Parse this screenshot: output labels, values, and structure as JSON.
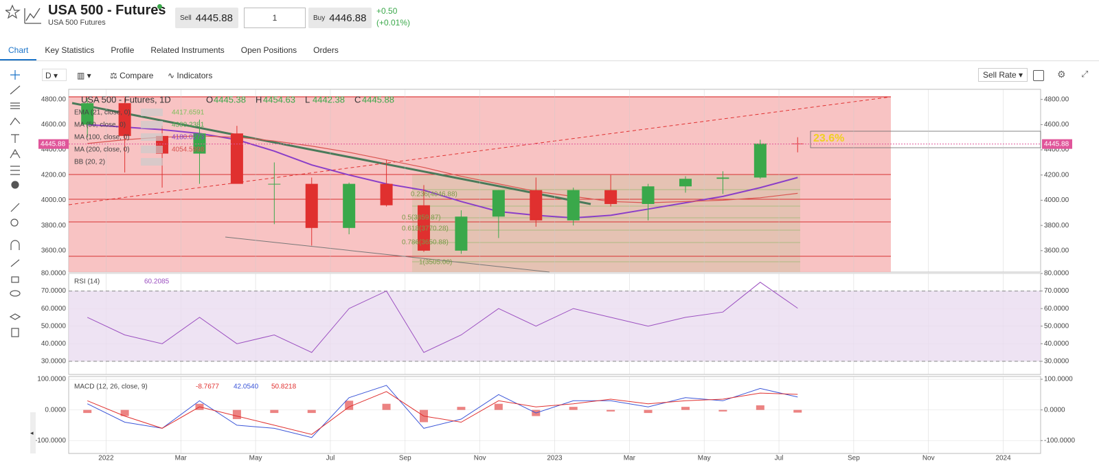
{
  "header": {
    "title": "USA 500 - Futures",
    "subtitle": "USA 500 Futures",
    "sell_label": "Sell",
    "sell_value": "4445.88",
    "quantity": "1",
    "buy_label": "Buy",
    "buy_value": "4446.88",
    "change": "+0.50",
    "change_pct": "(+0.01%)"
  },
  "tabs": [
    "Chart",
    "Key Statistics",
    "Profile",
    "Related Instruments",
    "Open Positions",
    "Orders"
  ],
  "toolbar": {
    "interval": "D",
    "compare": "Compare",
    "indicators": "Indicators",
    "rate": "Sell Rate"
  },
  "chart_data": [
    {
      "type": "candlestick",
      "title": "USA 500 - Futures, 1D",
      "ohlc_labels": [
        {
          "key": "O",
          "value": "4445.38"
        },
        {
          "key": "H",
          "value": "4454.63"
        },
        {
          "key": "L",
          "value": "4442.38"
        },
        {
          "key": "C",
          "value": "4445.88"
        }
      ],
      "indicators": [
        {
          "name": "EMA (21, close, 0)",
          "value": "4417.6591",
          "color": "#7cbf5a"
        },
        {
          "name": "MA (50, close, 0)",
          "value": "4300.2381",
          "color": "#4fae4f"
        },
        {
          "name": "MA (100, close, 0)",
          "value": "4180.0273",
          "color": "#8a3ec8"
        },
        {
          "name": "MA (200, close, 0)",
          "value": "4054.5998",
          "color": "#d9534f"
        },
        {
          "name": "BB (20, 2)",
          "value": null,
          "color": "#4aa0d0"
        }
      ],
      "fib_labels": [
        "0.236(4046.88)",
        "0.5(3859.87)",
        "0.618(3770.28)",
        "0.786(3650.88)",
        "1(3505.00)"
      ],
      "zone_label": "23.6%",
      "last_price": "4445.88",
      "x": [
        "2021-12",
        "2022-01",
        "2022-02",
        "2022-03",
        "2022-04",
        "2022-05",
        "2022-06",
        "2022-07",
        "2022-08",
        "2022-09",
        "2022-10",
        "2022-11",
        "2022-12",
        "2023-01",
        "2023-02",
        "2023-03",
        "2023-04",
        "2023-05",
        "2023-06",
        "2023-07"
      ],
      "open": [
        4600,
        4770,
        4510,
        4370,
        4530,
        4130,
        4130,
        3780,
        4130,
        3960,
        3600,
        3870,
        4080,
        3840,
        4080,
        3970,
        4110,
        4170,
        4180,
        4450
      ],
      "high": [
        4810,
        4810,
        4590,
        4640,
        4590,
        4300,
        4180,
        4140,
        4320,
        4120,
        3920,
        4080,
        4180,
        4100,
        4200,
        4130,
        4190,
        4230,
        4480,
        4500
      ],
      "low": [
        4500,
        4220,
        4100,
        4130,
        4140,
        3810,
        3640,
        3730,
        3950,
        3590,
        3575,
        3700,
        3790,
        3800,
        3950,
        3840,
        4060,
        4050,
        4170,
        4380
      ],
      "close": [
        4770,
        4510,
        4370,
        4530,
        4130,
        4130,
        3780,
        4130,
        3960,
        3600,
        3870,
        4080,
        3840,
        4080,
        3970,
        4110,
        4170,
        4180,
        4450,
        4445.88
      ],
      "up_color": "#3aa84a",
      "down_color": "#e0302f",
      "series": [
        {
          "name": "MA (100, close, 0)",
          "color": "#8a3ec8",
          "values": [
            4600,
            4580,
            4560,
            4530,
            4480,
            4390,
            4280,
            4200,
            4130,
            4080,
            3990,
            3910,
            3880,
            3860,
            3880,
            3930,
            3980,
            4030,
            4100,
            4180
          ]
        },
        {
          "name": "MA (200, close, 0)",
          "color": "#d9534f",
          "values": [
            4450,
            4480,
            4500,
            4510,
            4500,
            4470,
            4430,
            4380,
            4320,
            4260,
            4190,
            4130,
            4070,
            4030,
            3990,
            3980,
            3990,
            4000,
            4020,
            4054.6
          ]
        }
      ],
      "xlim": [
        "2021-12",
        "2024-02"
      ],
      "xticks": [
        {
          "value": "2022-01",
          "label": "2022"
        },
        {
          "value": "2022-03",
          "label": "Mar"
        },
        {
          "value": "2022-05",
          "label": "May"
        },
        {
          "value": "2022-07",
          "label": "Jul"
        },
        {
          "value": "2022-09",
          "label": "Sep"
        },
        {
          "value": "2022-11",
          "label": "Nov"
        },
        {
          "value": "2023-01",
          "label": "2023"
        },
        {
          "value": "2023-03",
          "label": "Mar"
        },
        {
          "value": "2023-05",
          "label": "May"
        },
        {
          "value": "2023-07",
          "label": "Jul"
        },
        {
          "value": "2023-09",
          "label": "Sep"
        },
        {
          "value": "2023-11",
          "label": "Nov"
        },
        {
          "value": "2024-01",
          "label": "2024"
        }
      ],
      "ylim": [
        3430,
        4880
      ],
      "yticks": [
        {
          "value": 3600,
          "label": "3600.00"
        },
        {
          "value": 3800,
          "label": "3800.00"
        },
        {
          "value": 4000,
          "label": "4000.00"
        },
        {
          "value": 4200,
          "label": "4200.00"
        },
        {
          "value": 4400,
          "label": "4400.00"
        },
        {
          "value": 4600,
          "label": "4600.00"
        },
        {
          "value": 4800,
          "label": "4800.00"
        }
      ],
      "grid": true
    },
    {
      "type": "line",
      "title": "RSI (14)",
      "last_value": "60.2085",
      "series": [
        {
          "name": "RSI (14)",
          "color": "#9b4fc0",
          "values": [
            55,
            45,
            40,
            55,
            40,
            45,
            35,
            60,
            70,
            35,
            45,
            60,
            50,
            60,
            55,
            50,
            55,
            58,
            75,
            60.2085
          ]
        }
      ],
      "bands": [
        30,
        70
      ],
      "ylim": [
        22.5,
        80
      ],
      "yticks": [
        {
          "value": 30,
          "label": "30.0000"
        },
        {
          "value": 40,
          "label": "40.0000"
        },
        {
          "value": 50,
          "label": "50.0000"
        },
        {
          "value": 60,
          "label": "60.0000"
        },
        {
          "value": 70,
          "label": "70.0000"
        },
        {
          "value": 80,
          "label": "80.0000"
        }
      ],
      "grid": true
    },
    {
      "type": "macd",
      "title": "MACD (12, 26, close, 9)",
      "legend_values": [
        {
          "text": "-8.7677",
          "color": "#e0302f"
        },
        {
          "text": "42.0540",
          "color": "#3a55d8"
        },
        {
          "text": "50.8218",
          "color": "#e0302f"
        }
      ],
      "histogram": {
        "color": "#e0302f",
        "values": [
          -10,
          -20,
          0,
          20,
          -30,
          -10,
          -10,
          30,
          20,
          -40,
          10,
          20,
          -20,
          10,
          -5,
          -10,
          10,
          -5,
          15,
          -8.7677
        ]
      },
      "series": [
        {
          "name": "MACD",
          "color": "#3a55d8",
          "values": [
            20,
            -40,
            -60,
            30,
            -50,
            -60,
            -90,
            40,
            80,
            -60,
            -30,
            50,
            -10,
            30,
            30,
            10,
            40,
            30,
            70,
            42.054
          ]
        },
        {
          "name": "Signal",
          "color": "#e0302f",
          "values": [
            30,
            -20,
            -60,
            10,
            -20,
            -50,
            -80,
            10,
            60,
            -20,
            -40,
            30,
            10,
            20,
            35,
            20,
            30,
            35,
            55,
            50.8218
          ]
        }
      ],
      "ylim": [
        -142,
        109
      ],
      "yticks": [
        {
          "value": -100,
          "label": "-100.0000"
        },
        {
          "value": 0,
          "label": "0.0000"
        },
        {
          "value": 100,
          "label": "100.0000"
        }
      ],
      "grid": true
    }
  ]
}
